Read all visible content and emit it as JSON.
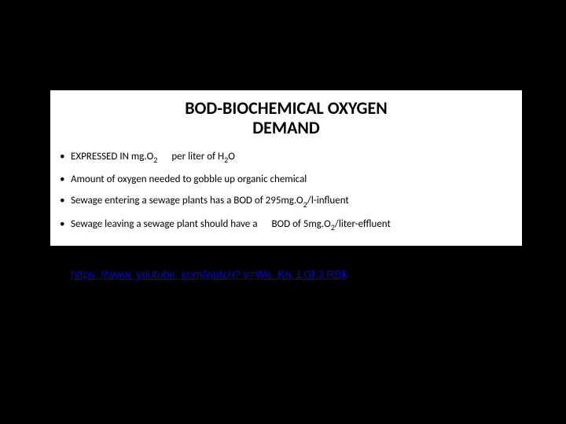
{
  "title_line1": "BOD-BIOCHEMICAL OXYGEN",
  "title_line2": "DEMAND",
  "bullets": {
    "b1_a": "EXPRESSED IN mg.O",
    "b1_b": "per liter of H",
    "b1_c": "O",
    "b2": "Amount of oxygen needed to gobble up organic chemical",
    "b3_a": "Sewage entering a sewage plants has a BOD of 295mg.O",
    "b3_b": "/l-influent",
    "b4_a": "Sewage leaving a sewage plant should have a",
    "b4_b": "BOD of 5mg.O",
    "b4_c": "/liter-effluent"
  },
  "sub2": "2",
  "link_text": "https: //www. youtube. com/watch? v=We. Kn. LGl 3 RBk",
  "colors": {
    "page_bg": "#000000",
    "box_bg": "#ffffff",
    "text": "#000000",
    "link": "#0000ee"
  },
  "typography": {
    "title_fontsize": 22,
    "bullet_fontsize": 13,
    "link_fontsize": 14
  }
}
